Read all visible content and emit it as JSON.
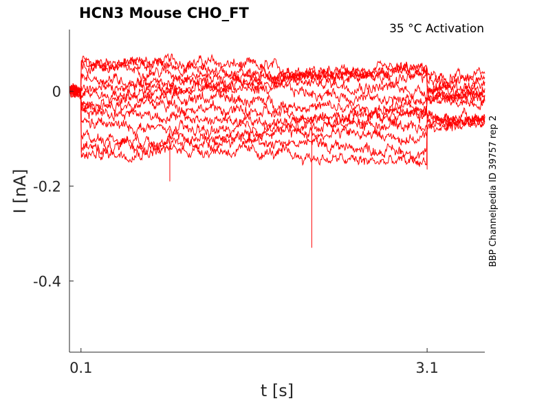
{
  "chart_data": {
    "type": "line",
    "title": "HCN3  Mouse  CHO_FT",
    "annotation": "35 °C  Activation",
    "side_label": "BBP Channelpedia ID 39757 rep 2",
    "xlabel": "t [s]",
    "ylabel": "I [nA]",
    "xlim": [
      0.0,
      3.6
    ],
    "ylim": [
      -0.55,
      0.13
    ],
    "x_ticks": [
      0.1,
      3.1
    ],
    "x_tick_labels": [
      "0.1",
      "3.1"
    ],
    "y_ticks": [
      0,
      -0.2,
      -0.4
    ],
    "y_tick_labels": [
      "0",
      "-0.2",
      "-0.4"
    ],
    "grid": false,
    "color": "#ff0000",
    "pulse_window": [
      0.1,
      3.1
    ],
    "series": [
      {
        "pre": 0.0,
        "step": 0.055,
        "post": 0.03
      },
      {
        "pre": 0.0,
        "step": 0.05,
        "post": 0.02
      },
      {
        "pre": 0.0,
        "step": 0.045,
        "post": 0.01
      },
      {
        "pre": 0.0,
        "step": 0.03,
        "post": 0.0
      },
      {
        "pre": 0.0,
        "step": 0.015,
        "post": -0.01
      },
      {
        "pre": 0.0,
        "step": 0.0,
        "post": 0.0
      },
      {
        "pre": 0.0,
        "step": -0.02,
        "post": -0.01
      },
      {
        "pre": 0.0,
        "step": -0.035,
        "post": -0.02
      },
      {
        "pre": 0.0,
        "step": -0.05,
        "post": -0.07
      },
      {
        "pre": 0.0,
        "step": -0.07,
        "post": -0.06
      },
      {
        "pre": 0.0,
        "step": -0.09,
        "post": -0.06
      },
      {
        "pre": 0.0,
        "step": -0.11,
        "post": -0.06
      },
      {
        "pre": 0.0,
        "step": -0.13,
        "post": -0.07
      }
    ],
    "spikes": [
      {
        "x": 2.1,
        "y": -0.33
      },
      {
        "x": 0.87,
        "y": -0.19
      },
      {
        "x": 3.1,
        "y": -0.165
      }
    ]
  }
}
